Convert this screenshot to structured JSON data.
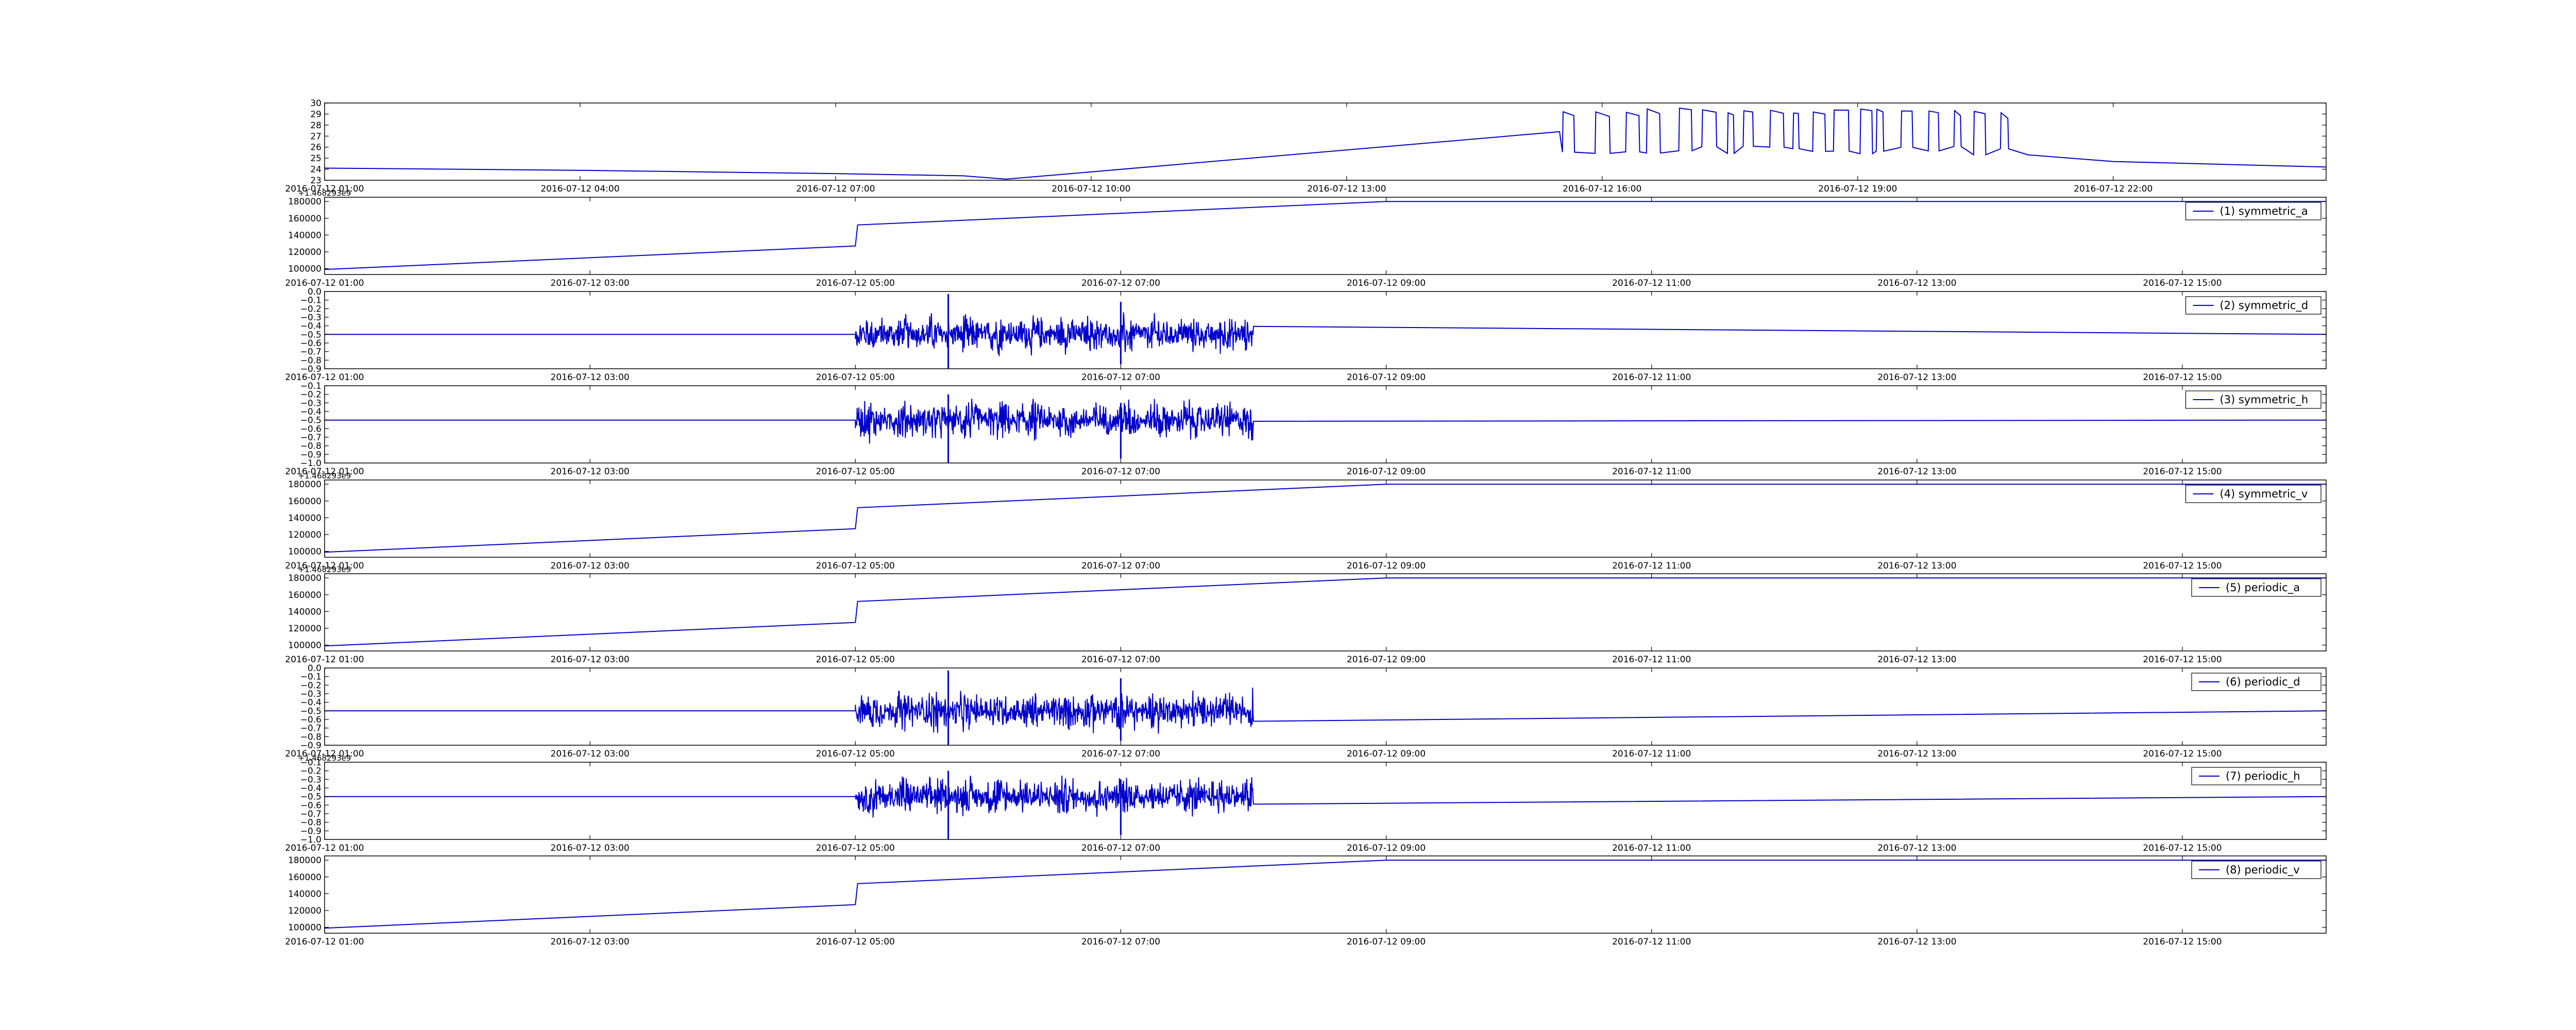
{
  "chart_data": [
    {
      "type": "line",
      "name_key": "temp",
      "title": "",
      "legend": "",
      "line_color": "#0000cc",
      "xlim": [
        "2016-07-12 01:00",
        "2016-07-13 00:30"
      ],
      "ylim": [
        23,
        30
      ],
      "yticks": [
        23,
        24,
        25,
        26,
        27,
        28,
        29,
        30
      ],
      "ytick_labels": [
        "23",
        "24",
        "25",
        "26",
        "27",
        "28",
        "29",
        "30"
      ],
      "xticks": [
        "2016-07-12 01:00",
        "2016-07-12 04:00",
        "2016-07-12 07:00",
        "2016-07-12 10:00",
        "2016-07-12 13:00",
        "2016-07-12 16:00",
        "2016-07-12 19:00",
        "2016-07-12 22:00"
      ],
      "xtick_labels": [
        "2016-07-12 01:00",
        "2016-07-12 04:00",
        "2016-07-12 07:00",
        "2016-07-12 10:00",
        "2016-07-12 13:00",
        "2016-07-12 16:00",
        "2016-07-12 19:00",
        "2016-07-12 22:00"
      ],
      "offset_text": "",
      "x": [
        "2016-07-12 01:00",
        "2016-07-12 04:00",
        "2016-07-12 07:00",
        "2016-07-12 08:30",
        "2016-07-12 09:00",
        "2016-07-12 15:30",
        "2016-07-12 16:00",
        "2016-07-12 17:00",
        "2016-07-12 18:00",
        "2016-07-12 19:00",
        "2016-07-12 20:00",
        "2016-07-12 21:00",
        "2016-07-12 22:00",
        "2016-07-13 00:30"
      ],
      "y": [
        24.1,
        23.9,
        23.6,
        23.4,
        23.1,
        27.4,
        26.0,
        26.5,
        25.8,
        26.2,
        25.9,
        25.3,
        24.7,
        24.2
      ],
      "noise": {
        "x_start": "2016-07-12 15:32",
        "x_end": "2016-07-12 20:45",
        "low": 25.3,
        "high": 29.6
      },
      "legend_loc": "none"
    },
    {
      "type": "line",
      "name_key": "symmetric_a",
      "legend": "(1) symmetric_a",
      "line_color": "#0000cc",
      "xlim": [
        "2016-07-12 01:00",
        "2016-07-12 16:05"
      ],
      "ylim": [
        93000,
        185000
      ],
      "yticks": [
        100000,
        120000,
        140000,
        160000,
        180000
      ],
      "ytick_labels": [
        "100000",
        "120000",
        "140000",
        "160000",
        "180000"
      ],
      "xticks": [
        "2016-07-12 01:00",
        "2016-07-12 03:00",
        "2016-07-12 05:00",
        "2016-07-12 07:00",
        "2016-07-12 09:00",
        "2016-07-12 11:00",
        "2016-07-12 13:00",
        "2016-07-12 15:00"
      ],
      "xtick_labels": [
        "2016-07-12 01:00",
        "2016-07-12 03:00",
        "2016-07-12 05:00",
        "2016-07-12 07:00",
        "2016-07-12 09:00",
        "2016-07-12 11:00",
        "2016-07-12 13:00",
        "2016-07-12 15:00"
      ],
      "offset_text": "+1.468293e9",
      "x": [
        "2016-07-12 01:00",
        "2016-07-12 05:00",
        "2016-07-12 05:01",
        "2016-07-12 09:00",
        "2016-07-12 16:05"
      ],
      "y": [
        99000,
        127000,
        152000,
        180000,
        180000
      ],
      "legend_loc": "upper right"
    },
    {
      "type": "line",
      "name_key": "symmetric_d",
      "legend": "(2) symmetric_d",
      "line_color": "#0000cc",
      "xlim": [
        "2016-07-12 01:00",
        "2016-07-12 16:05"
      ],
      "ylim": [
        -0.9,
        0.0
      ],
      "yticks": [
        -0.9,
        -0.8,
        -0.7,
        -0.6,
        -0.5,
        -0.4,
        -0.3,
        -0.2,
        -0.1,
        0.0
      ],
      "ytick_labels": [
        "−0.9",
        "−0.8",
        "−0.7",
        "−0.6",
        "−0.5",
        "−0.4",
        "−0.3",
        "−0.2",
        "−0.1",
        "0.0"
      ],
      "xticks": [
        "2016-07-12 01:00",
        "2016-07-12 03:00",
        "2016-07-12 05:00",
        "2016-07-12 07:00",
        "2016-07-12 09:00",
        "2016-07-12 11:00",
        "2016-07-12 13:00",
        "2016-07-12 15:00"
      ],
      "xtick_labels": [
        "2016-07-12 01:00",
        "2016-07-12 03:00",
        "2016-07-12 05:00",
        "2016-07-12 07:00",
        "2016-07-12 09:00",
        "2016-07-12 11:00",
        "2016-07-12 13:00",
        "2016-07-12 15:00"
      ],
      "offset_text": "",
      "baseline": -0.5,
      "noise": {
        "x_start": "2016-07-12 05:00",
        "x_end": "2016-07-12 08:00",
        "amplitude": 0.22,
        "spikes": [
          {
            "x": "2016-07-12 05:42",
            "low": -0.9,
            "high": -0.03
          },
          {
            "x": "2016-07-12 07:00",
            "low": -0.85,
            "high": -0.12
          }
        ]
      },
      "legend_loc": "upper right"
    },
    {
      "type": "line",
      "name_key": "symmetric_h",
      "legend": "(3) symmetric_h",
      "line_color": "#0000cc",
      "xlim": [
        "2016-07-12 01:00",
        "2016-07-12 16:05"
      ],
      "ylim": [
        -1.0,
        -0.1
      ],
      "yticks": [
        -1.0,
        -0.9,
        -0.8,
        -0.7,
        -0.6,
        -0.5,
        -0.4,
        -0.3,
        -0.2,
        -0.1
      ],
      "ytick_labels": [
        "−1.0",
        "−0.9",
        "−0.8",
        "−0.7",
        "−0.6",
        "−0.5",
        "−0.4",
        "−0.3",
        "−0.2",
        "−0.1"
      ],
      "xticks": [
        "2016-07-12 01:00",
        "2016-07-12 03:00",
        "2016-07-12 05:00",
        "2016-07-12 07:00",
        "2016-07-12 09:00",
        "2016-07-12 11:00",
        "2016-07-12 13:00",
        "2016-07-12 15:00"
      ],
      "xtick_labels": [
        "2016-07-12 01:00",
        "2016-07-12 03:00",
        "2016-07-12 05:00",
        "2016-07-12 07:00",
        "2016-07-12 09:00",
        "2016-07-12 11:00",
        "2016-07-12 13:00",
        "2016-07-12 15:00"
      ],
      "offset_text": "",
      "baseline": -0.5,
      "noise": {
        "x_start": "2016-07-12 05:00",
        "x_end": "2016-07-12 08:00",
        "amplitude": 0.22,
        "spikes": [
          {
            "x": "2016-07-12 05:42",
            "low": -1.0,
            "high": -0.2
          },
          {
            "x": "2016-07-12 07:00",
            "low": -0.95,
            "high": -0.3
          }
        ]
      },
      "legend_loc": "upper right"
    },
    {
      "type": "line",
      "name_key": "symmetric_v",
      "legend": "(4) symmetric_v",
      "line_color": "#0000cc",
      "xlim": [
        "2016-07-12 01:00",
        "2016-07-12 16:05"
      ],
      "ylim": [
        93000,
        185000
      ],
      "yticks": [
        100000,
        120000,
        140000,
        160000,
        180000
      ],
      "ytick_labels": [
        "100000",
        "120000",
        "140000",
        "160000",
        "180000"
      ],
      "xticks": [
        "2016-07-12 01:00",
        "2016-07-12 03:00",
        "2016-07-12 05:00",
        "2016-07-12 07:00",
        "2016-07-12 09:00",
        "2016-07-12 11:00",
        "2016-07-12 13:00",
        "2016-07-12 15:00"
      ],
      "xtick_labels": [
        "2016-07-12 01:00",
        "2016-07-12 03:00",
        "2016-07-12 05:00",
        "2016-07-12 07:00",
        "2016-07-12 09:00",
        "2016-07-12 11:00",
        "2016-07-12 13:00",
        "2016-07-12 15:00"
      ],
      "offset_text": "+1.468293e9",
      "x": [
        "2016-07-12 01:00",
        "2016-07-12 05:00",
        "2016-07-12 05:01",
        "2016-07-12 09:00",
        "2016-07-12 16:05"
      ],
      "y": [
        99000,
        127000,
        152000,
        180000,
        180000
      ],
      "legend_loc": "upper right"
    },
    {
      "type": "line",
      "name_key": "periodic_a",
      "legend": "(5) periodic_a",
      "line_color": "#0000cc",
      "xlim": [
        "2016-07-12 01:00",
        "2016-07-12 16:05"
      ],
      "ylim": [
        93000,
        185000
      ],
      "yticks": [
        100000,
        120000,
        140000,
        160000,
        180000
      ],
      "ytick_labels": [
        "100000",
        "120000",
        "140000",
        "160000",
        "180000"
      ],
      "xticks": [
        "2016-07-12 01:00",
        "2016-07-12 03:00",
        "2016-07-12 05:00",
        "2016-07-12 07:00",
        "2016-07-12 09:00",
        "2016-07-12 11:00",
        "2016-07-12 13:00",
        "2016-07-12 15:00"
      ],
      "xtick_labels": [
        "2016-07-12 01:00",
        "2016-07-12 03:00",
        "2016-07-12 05:00",
        "2016-07-12 07:00",
        "2016-07-12 09:00",
        "2016-07-12 11:00",
        "2016-07-12 13:00",
        "2016-07-12 15:00"
      ],
      "offset_text": "+1.468293e9",
      "x": [
        "2016-07-12 01:00",
        "2016-07-12 05:00",
        "2016-07-12 05:01",
        "2016-07-12 09:00",
        "2016-07-12 16:05"
      ],
      "y": [
        99000,
        127000,
        152000,
        180000,
        180000
      ],
      "legend_loc": "upper right"
    },
    {
      "type": "line",
      "name_key": "periodic_d",
      "legend": "(6) periodic_d",
      "line_color": "#0000cc",
      "xlim": [
        "2016-07-12 01:00",
        "2016-07-12 16:05"
      ],
      "ylim": [
        -0.9,
        0.0
      ],
      "yticks": [
        -0.9,
        -0.8,
        -0.7,
        -0.6,
        -0.5,
        -0.4,
        -0.3,
        -0.2,
        -0.1,
        0.0
      ],
      "ytick_labels": [
        "−0.9",
        "−0.8",
        "−0.7",
        "−0.6",
        "−0.5",
        "−0.4",
        "−0.3",
        "−0.2",
        "−0.1",
        "0.0"
      ],
      "xticks": [
        "2016-07-12 01:00",
        "2016-07-12 03:00",
        "2016-07-12 05:00",
        "2016-07-12 07:00",
        "2016-07-12 09:00",
        "2016-07-12 11:00",
        "2016-07-12 13:00",
        "2016-07-12 15:00"
      ],
      "xtick_labels": [
        "2016-07-12 01:00",
        "2016-07-12 03:00",
        "2016-07-12 05:00",
        "2016-07-12 07:00",
        "2016-07-12 09:00",
        "2016-07-12 11:00",
        "2016-07-12 13:00",
        "2016-07-12 15:00"
      ],
      "offset_text": "",
      "baseline": -0.5,
      "noise": {
        "x_start": "2016-07-12 05:00",
        "x_end": "2016-07-12 08:00",
        "amplitude": 0.22,
        "spikes": [
          {
            "x": "2016-07-12 05:42",
            "low": -0.9,
            "high": -0.03
          },
          {
            "x": "2016-07-12 07:00",
            "low": -0.85,
            "high": -0.12
          }
        ]
      },
      "legend_loc": "upper right"
    },
    {
      "type": "line",
      "name_key": "periodic_h",
      "legend": "(7) periodic_h",
      "line_color": "#0000cc",
      "xlim": [
        "2016-07-12 01:00",
        "2016-07-12 16:05"
      ],
      "ylim": [
        -1.0,
        -0.1
      ],
      "yticks": [
        -1.0,
        -0.9,
        -0.8,
        -0.7,
        -0.6,
        -0.5,
        -0.4,
        -0.3,
        -0.2,
        -0.1
      ],
      "ytick_labels": [
        "−1.0",
        "−0.9",
        "−0.8",
        "−0.7",
        "−0.6",
        "−0.5",
        "−0.4",
        "−0.3",
        "−0.2",
        "−0.1"
      ],
      "xticks": [
        "2016-07-12 01:00",
        "2016-07-12 03:00",
        "2016-07-12 05:00",
        "2016-07-12 07:00",
        "2016-07-12 09:00",
        "2016-07-12 11:00",
        "2016-07-12 13:00",
        "2016-07-12 15:00"
      ],
      "xtick_labels": [
        "2016-07-12 01:00",
        "2016-07-12 03:00",
        "2016-07-12 05:00",
        "2016-07-12 07:00",
        "2016-07-12 09:00",
        "2016-07-12 11:00",
        "2016-07-12 13:00",
        "2016-07-12 15:00"
      ],
      "offset_text": "+1.468293e9",
      "baseline": -0.5,
      "noise": {
        "x_start": "2016-07-12 05:00",
        "x_end": "2016-07-12 08:00",
        "amplitude": 0.22,
        "spikes": [
          {
            "x": "2016-07-12 05:42",
            "low": -1.0,
            "high": -0.2
          },
          {
            "x": "2016-07-12 07:00",
            "low": -0.95,
            "high": -0.3
          }
        ]
      },
      "legend_loc": "upper right"
    },
    {
      "type": "line",
      "name_key": "periodic_v",
      "legend": "(8) periodic_v",
      "line_color": "#0000cc",
      "xlim": [
        "2016-07-12 01:00",
        "2016-07-12 16:05"
      ],
      "ylim": [
        93000,
        185000
      ],
      "yticks": [
        100000,
        120000,
        140000,
        160000,
        180000
      ],
      "ytick_labels": [
        "100000",
        "120000",
        "140000",
        "160000",
        "180000"
      ],
      "xticks": [
        "2016-07-12 01:00",
        "2016-07-12 03:00",
        "2016-07-12 05:00",
        "2016-07-12 07:00",
        "2016-07-12 09:00",
        "2016-07-12 11:00",
        "2016-07-12 13:00",
        "2016-07-12 15:00"
      ],
      "xtick_labels": [
        "2016-07-12 01:00",
        "2016-07-12 03:00",
        "2016-07-12 05:00",
        "2016-07-12 07:00",
        "2016-07-12 09:00",
        "2016-07-12 11:00",
        "2016-07-12 13:00",
        "2016-07-12 15:00"
      ],
      "offset_text": "",
      "x": [
        "2016-07-12 01:00",
        "2016-07-12 05:00",
        "2016-07-12 05:01",
        "2016-07-12 09:00",
        "2016-07-12 16:05"
      ],
      "y": [
        99000,
        127000,
        152000,
        180000,
        180000
      ],
      "legend_loc": "upper right"
    }
  ]
}
